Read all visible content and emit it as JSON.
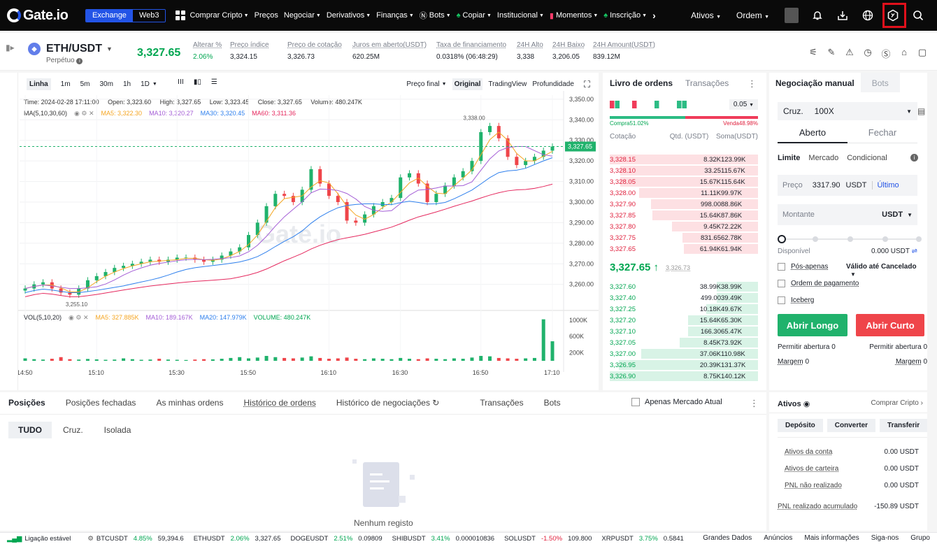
{
  "nav": {
    "logo": "Gate.io",
    "seg_exchange": "Exchange",
    "seg_web3": "Web3",
    "items": [
      {
        "label": "Comprar Cripto",
        "dd": true,
        "icon": ""
      },
      {
        "label": "Preços",
        "dd": false,
        "icon": ""
      },
      {
        "label": "Negociar",
        "dd": true,
        "icon": ""
      },
      {
        "label": "Derivativos",
        "dd": true,
        "icon": ""
      },
      {
        "label": "Finanças",
        "dd": true,
        "icon": ""
      },
      {
        "label": "Bots",
        "dd": true,
        "icon": "N"
      },
      {
        "label": "Copiar",
        "dd": true,
        "icon": "flame"
      },
      {
        "label": "Institucional",
        "dd": true,
        "icon": ""
      },
      {
        "label": "Momentos",
        "dd": true,
        "icon": "bars"
      },
      {
        "label": "Inscrição",
        "dd": true,
        "icon": "flame"
      }
    ],
    "more": "›",
    "ativos": "Ativos",
    "ordem": "Ordem"
  },
  "ticker": {
    "pair": "ETH/USDT",
    "sub": "Perpétuo",
    "last": "3,327.65",
    "stats": [
      {
        "k": "Alterar %",
        "v": "2.06%",
        "green": true
      },
      {
        "k": "Preço índice",
        "v": "3,324.15",
        "green": false
      },
      {
        "k": "Preço de cotação",
        "v": "3,326.73",
        "green": false
      },
      {
        "k": "Juros em aberto(USDT)",
        "v": "620.25M",
        "green": false
      },
      {
        "k": "Taxa de financiamento",
        "v": "0.0318%  (06:48:29)",
        "green": false
      },
      {
        "k": "24H Alto",
        "v": "3,338",
        "green": false
      },
      {
        "k": "24H Baixo",
        "v": "3,206.05",
        "green": false
      },
      {
        "k": "24H Amount(USDT)",
        "v": "839.12M",
        "green": false
      }
    ]
  },
  "chart": {
    "toolbar": [
      "Linha",
      "1m",
      "5m",
      "30m",
      "1h",
      "1D"
    ],
    "toolbar_right": [
      "Preço final",
      "Original",
      "TradingView",
      "Profundidade"
    ],
    "info": {
      "time": "Time: 2024-02-28 17:11:00",
      "open": "Open: 3,323.60",
      "high": "High: 3,327.65",
      "low": "Low: 3,323.45",
      "close": "Close: 3,327.65",
      "volume": "Volume: 480.247K"
    },
    "ma_label": "MA(5,10,30,60)",
    "ma": [
      {
        "label": "MA5: 3,322.30",
        "color": "#f5a623"
      },
      {
        "label": "MA10: 3,320.27",
        "color": "#a45ed6"
      },
      {
        "label": "MA30: 3,320.45",
        "color": "#2f80ed"
      },
      {
        "label": "MA60: 3,311.36",
        "color": "#e5285e"
      }
    ],
    "vol_label": "VOL(5,10,20)",
    "vol_ma": [
      {
        "label": "MA5: 327.885K",
        "color": "#f5a623"
      },
      {
        "label": "MA10: 189.167K",
        "color": "#a45ed6"
      },
      {
        "label": "MA20: 147.979K",
        "color": "#2f80ed"
      },
      {
        "label": "VOLUME: 480.247K",
        "color": "#00a651"
      }
    ],
    "watermark": "Gate.io",
    "current_price_tag": "3,327.65",
    "high_marker": "3,338.00",
    "low_marker": "3,255.10"
  },
  "chart_data": {
    "type": "line",
    "title": "",
    "ylabel": "",
    "xlabel": "",
    "x_ticks": [
      "14:50",
      "15:10",
      "15:30",
      "15:50",
      "16:10",
      "16:30",
      "16:50",
      "17:10"
    ],
    "y_ticks": [
      3350,
      3340,
      3330,
      3320,
      3310,
      3300,
      3290,
      3280,
      3270,
      3260
    ],
    "ylim": [
      3248,
      3352
    ],
    "vol_ticks": [
      "1000K",
      "600K",
      "200K"
    ],
    "series": [
      {
        "values": [
          3258,
          3260,
          3261,
          3258,
          3256,
          3255,
          3258,
          3262,
          3264,
          3266,
          3268,
          3269,
          3270,
          3271,
          3272,
          3271,
          3272,
          3273,
          3273,
          3272,
          3271,
          3272,
          3274,
          3276,
          3278,
          3284,
          3290,
          3298,
          3304,
          3303,
          3300,
          3306,
          3316,
          3309,
          3303,
          3300,
          3291,
          3290,
          3294,
          3298,
          3300,
          3302,
          3312,
          3314,
          3309,
          3300,
          3304,
          3308,
          3312,
          3315,
          3320,
          3334,
          3337,
          3331,
          3322,
          3318,
          3320,
          3322,
          3325,
          3327
        ]
      }
    ],
    "volume": [
      60,
      40,
      30,
      50,
      90,
      40,
      30,
      45,
      35,
      25,
      30,
      60,
      40,
      25,
      30,
      50,
      30,
      25,
      20,
      30,
      40,
      35,
      50,
      70,
      90,
      60,
      80,
      120,
      90,
      70,
      60,
      80,
      110,
      70,
      50,
      60,
      80,
      50,
      40,
      60,
      50,
      40,
      70,
      50,
      40,
      60,
      50,
      40,
      60,
      50,
      80,
      120,
      110,
      70,
      60,
      50,
      60,
      70,
      1020,
      480
    ]
  },
  "orderbook": {
    "tab_book": "Livro de ordens",
    "tab_trades": "Transações",
    "step": "0.05",
    "buy_ratio": "Compra51.02%",
    "sell_ratio": "Venda48.98%",
    "head": [
      "Cotação",
      "Qtd. (USDT)",
      "Soma(USDT)"
    ],
    "asks": [
      {
        "p": "3,328.15",
        "q": "8.32K",
        "s": "123.99K",
        "w": 100
      },
      {
        "p": "3,328.10",
        "q": "33.25",
        "s": "115.67K",
        "w": 93
      },
      {
        "p": "3,328.05",
        "q": "15.67K",
        "s": "115.64K",
        "w": 93
      },
      {
        "p": "3,328.00",
        "q": "11.11K",
        "s": "99.97K",
        "w": 80
      },
      {
        "p": "3,327.90",
        "q": "998.00",
        "s": "88.86K",
        "w": 72
      },
      {
        "p": "3,327.85",
        "q": "15.64K",
        "s": "87.86K",
        "w": 71
      },
      {
        "p": "3,327.80",
        "q": "9.45K",
        "s": "72.22K",
        "w": 58
      },
      {
        "p": "3,327.75",
        "q": "831.65",
        "s": "62.78K",
        "w": 51
      },
      {
        "p": "3,327.65",
        "q": "61.94K",
        "s": "61.94K",
        "w": 50
      }
    ],
    "mid": "3,327.65 ↑",
    "mid_sub": "3,326.73",
    "bids": [
      {
        "p": "3,327.60",
        "q": "38.99K",
        "s": "38.99K",
        "w": 28
      },
      {
        "p": "3,327.40",
        "q": "499.00",
        "s": "39.49K",
        "w": 28
      },
      {
        "p": "3,327.25",
        "q": "10.18K",
        "s": "49.67K",
        "w": 35
      },
      {
        "p": "3,327.20",
        "q": "15.64K",
        "s": "65.30K",
        "w": 47
      },
      {
        "p": "3,327.10",
        "q": "166.30",
        "s": "65.47K",
        "w": 47
      },
      {
        "p": "3,327.05",
        "q": "8.45K",
        "s": "73.92K",
        "w": 53
      },
      {
        "p": "3,327.00",
        "q": "37.06K",
        "s": "110.98K",
        "w": 79
      },
      {
        "p": "3,326.95",
        "q": "20.39K",
        "s": "131.37K",
        "w": 94
      },
      {
        "p": "3,326.90",
        "q": "8.75K",
        "s": "140.12K",
        "w": 100
      }
    ]
  },
  "trade": {
    "tab_manual": "Negociação manual",
    "tab_bots": "Bots",
    "margin_mode": "Cruz.",
    "leverage": "100X",
    "open": "Aberto",
    "close": "Fechar",
    "types": [
      "Limite",
      "Mercado",
      "Condicional"
    ],
    "price_label": "Preço",
    "price_value": "3317.90",
    "price_unit": "USDT",
    "price_last": "Último",
    "amount_label": "Montante",
    "amount_unit": "USDT",
    "available_label": "Disponível",
    "available_value": "0.000 USDT",
    "post_only": "Pós-apenas",
    "tif": "Válido até Cancelado",
    "payment_order": "Ordem de pagamento",
    "iceberg": "Iceberg",
    "long": "Abrir Longo",
    "short": "Abrir Curto",
    "allow_open_l": "Permitir abertura",
    "allow_open_l_v": "0",
    "allow_open_r": "Permitir abertura",
    "allow_open_r_v": "0",
    "margin_l": "Margem",
    "margin_l_v": "0",
    "margin_r": "Margem",
    "margin_r_v": "0"
  },
  "positions": {
    "tabs": [
      "Posições",
      "Posições fechadas",
      "As minhas ordens",
      "Histórico de ordens",
      "Histórico de negociações",
      "Transações",
      "Bots"
    ],
    "only_current": "Apenas Mercado Atual",
    "subtabs": [
      "TUDO",
      "Cruz.",
      "Isolada"
    ],
    "empty": "Nenhum registo"
  },
  "assets": {
    "title": "Ativos",
    "buy": "Comprar Cripto",
    "buttons": [
      "Depósito",
      "Converter",
      "Transferir"
    ],
    "rows": [
      {
        "k": "Ativos da conta",
        "v": "0.00 USDT"
      },
      {
        "k": "Ativos de carteira",
        "v": "0.00 USDT"
      },
      {
        "k": "PNL não realizado",
        "v": "0.00 USDT"
      },
      {
        "k": "PNL realizado acumulado",
        "v": "-150.89 USDT"
      }
    ]
  },
  "footer": {
    "status": "Ligação estável",
    "tickers": [
      {
        "sym": "BTCUSDT",
        "chg": "4.85%",
        "px": "59,394.6",
        "up": true
      },
      {
        "sym": "ETHUSDT",
        "chg": "2.06%",
        "px": "3,327.65",
        "up": true
      },
      {
        "sym": "DOGEUSDT",
        "chg": "2.51%",
        "px": "0.09809",
        "up": true
      },
      {
        "sym": "SHIBUSDT",
        "chg": "3.41%",
        "px": "0.000010836",
        "up": true
      },
      {
        "sym": "SOLUSDT",
        "chg": "-1.50%",
        "px": "109.800",
        "up": false
      },
      {
        "sym": "XRPUSDT",
        "chg": "3.75%",
        "px": "0.5841",
        "up": true
      }
    ],
    "right": [
      "Grandes Dados",
      "Anúncios",
      "Mais informações",
      "Siga-nos",
      "Grupo"
    ]
  },
  "colors": {
    "green": "#20b26c",
    "red": "#ef454a",
    "accent": "#2354e6",
    "highlight": "#e0101b"
  }
}
